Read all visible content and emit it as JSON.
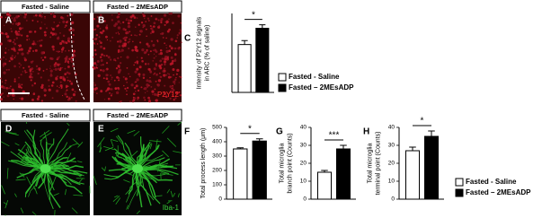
{
  "panels": [
    {
      "letter": "A",
      "header": "Fasted - Saline"
    },
    {
      "letter": "B",
      "header": "Fasted – 2MEsADP",
      "stain": "P2Y12"
    },
    {
      "letter": "D",
      "header": "Fasted - Saline"
    },
    {
      "letter": "E",
      "header": "Fasted – 2MEsADP",
      "stain": "Iba-1"
    }
  ],
  "chart_data": [
    {
      "type": "bar",
      "panel_label": "C",
      "ylabel": [
        "Intensity of P2Y12 signals",
        "in ARC (% of saline)"
      ],
      "annotation": "*",
      "ylim": [
        0,
        160
      ],
      "series": [
        {
          "name": "Fasted - Saline",
          "color": "#ffffff",
          "values": [
            97
          ],
          "errors": [
            8
          ]
        },
        {
          "name": "Fasted – 2MEsADP",
          "color": "#000000",
          "values": [
            130
          ],
          "errors": [
            7
          ]
        }
      ]
    },
    {
      "type": "bar",
      "panel_label": "F",
      "ylabel": [
        "Total process length (μm)"
      ],
      "annotation": "*",
      "ylim": [
        0,
        500
      ],
      "yticks": [
        0,
        100,
        200,
        300,
        400,
        500
      ],
      "series": [
        {
          "color": "#ffffff",
          "values": [
            350
          ],
          "errors": [
            8
          ]
        },
        {
          "color": "#000000",
          "values": [
            405
          ],
          "errors": [
            15
          ]
        }
      ]
    },
    {
      "type": "bar",
      "panel_label": "G",
      "ylabel": [
        "Total microglia",
        "branch point (Counts)"
      ],
      "annotation": "***",
      "ylim": [
        0,
        40
      ],
      "yticks": [
        0,
        10,
        20,
        30,
        40
      ],
      "series": [
        {
          "color": "#ffffff",
          "values": [
            15
          ],
          "errors": [
            1
          ]
        },
        {
          "color": "#000000",
          "values": [
            28
          ],
          "errors": [
            2
          ]
        }
      ]
    },
    {
      "type": "bar",
      "panel_label": "H",
      "ylabel": [
        "Total microglia",
        "terminal point (Counts)"
      ],
      "annotation": "*",
      "ylim": [
        0,
        40
      ],
      "yticks": [
        0,
        10,
        20,
        30,
        40
      ],
      "series": [
        {
          "name": "Fasted - Saline",
          "color": "#ffffff",
          "values": [
            27
          ],
          "errors": [
            2
          ]
        },
        {
          "name": "Fasted – 2MEsADP",
          "color": "#000000",
          "values": [
            35
          ],
          "errors": [
            3
          ]
        }
      ]
    }
  ]
}
